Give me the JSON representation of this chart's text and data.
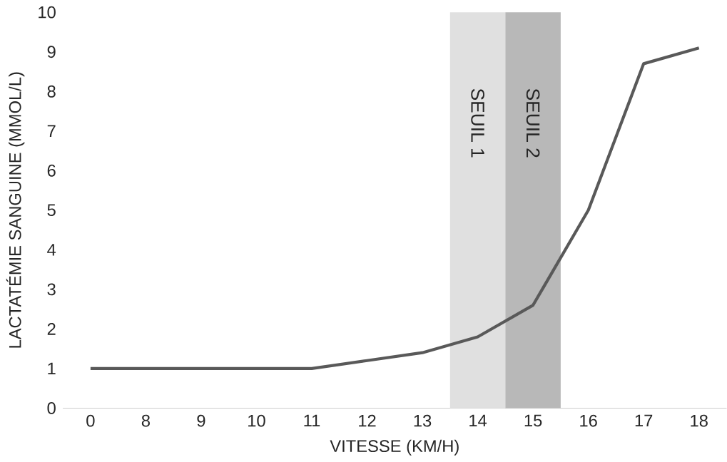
{
  "chart_data": {
    "type": "line",
    "xlabel": "VITESSE (KM/H)",
    "ylabel": "LACTATÉMIE SANGUINE (MMOL/L)",
    "categories": [
      "0",
      "8",
      "9",
      "10",
      "11",
      "12",
      "13",
      "14",
      "15",
      "16",
      "17",
      "18"
    ],
    "values": [
      1,
      1,
      1,
      1,
      1,
      1.2,
      1.4,
      1.8,
      2.6,
      5,
      8.7,
      9.1
    ],
    "color": "#595959",
    "line_style": "solid",
    "ylim": [
      0,
      10
    ],
    "yticks": [
      0,
      1,
      2,
      3,
      4,
      5,
      6,
      7,
      8,
      9,
      10
    ],
    "bands": [
      {
        "axis": "x",
        "from": "14",
        "to": "14",
        "label": "SEUIL 1",
        "color": "#e0e0e0"
      },
      {
        "axis": "x",
        "from": "15",
        "to": "15",
        "label": "SEUIL 2",
        "color": "#b8b8b8"
      }
    ]
  }
}
